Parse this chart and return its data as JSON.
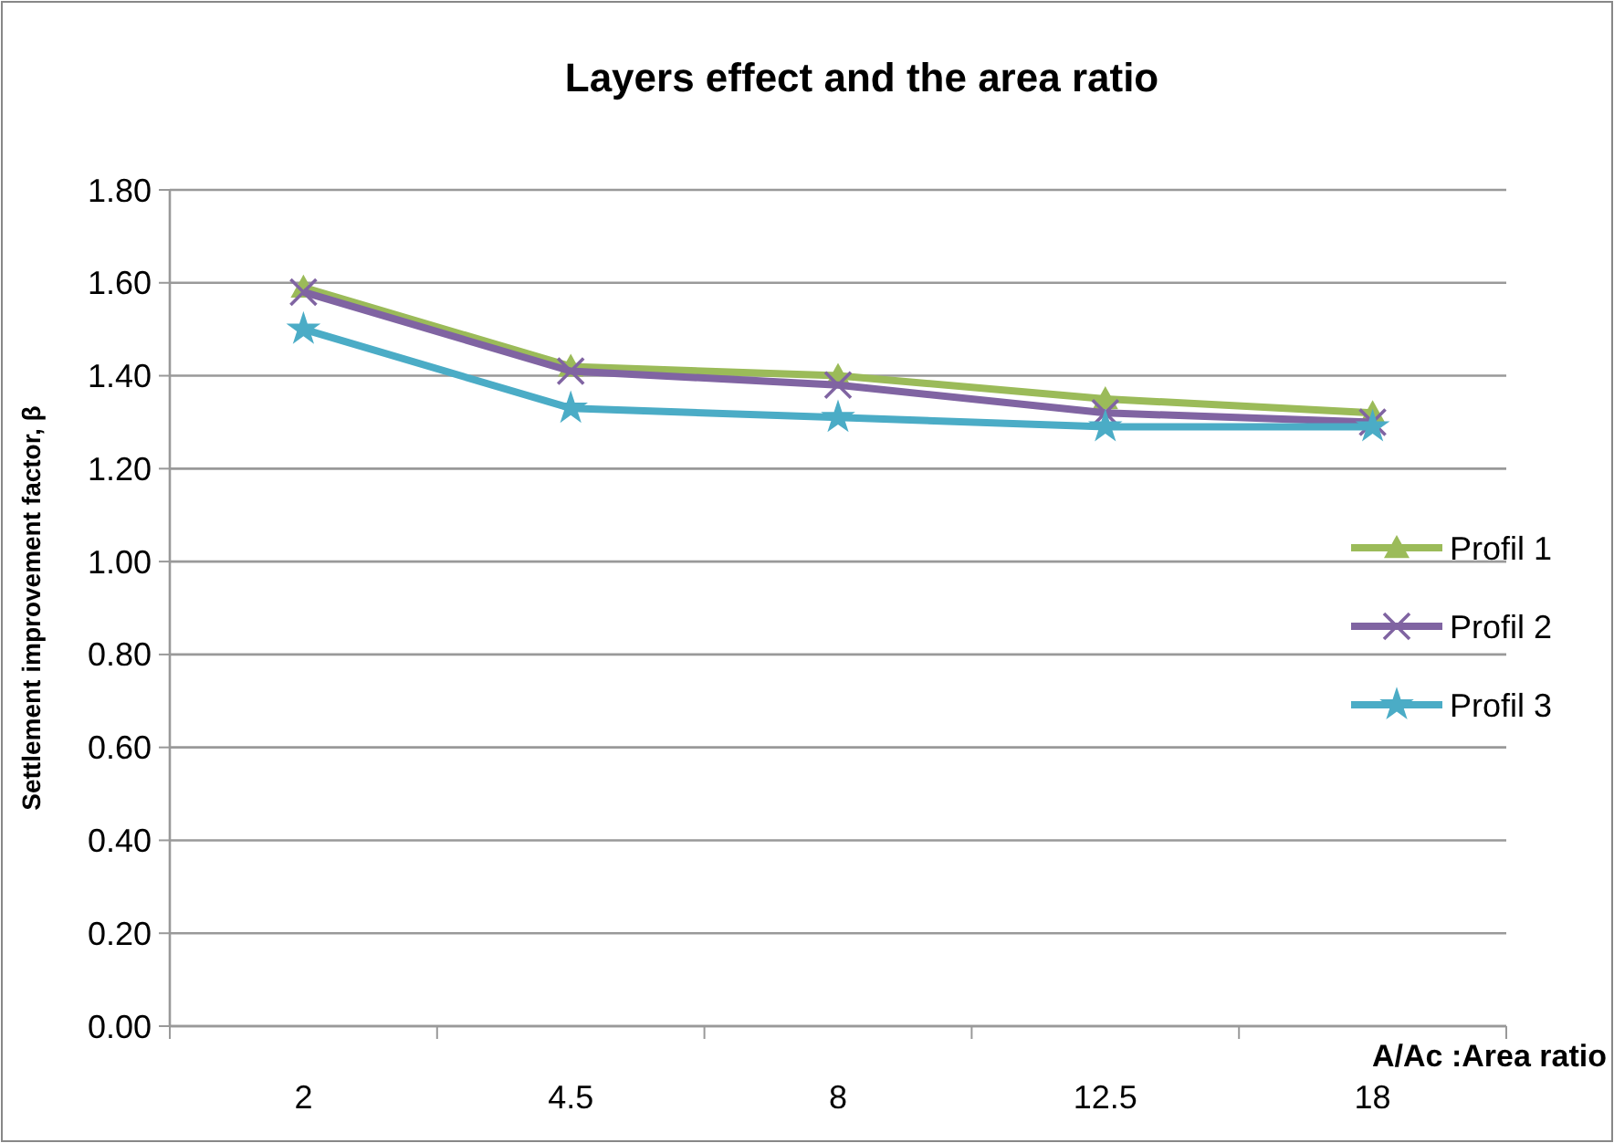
{
  "chart_data": {
    "type": "line",
    "title": "Layers effect and the area ratio",
    "xlabel": "A/Ac :Area ratio",
    "ylabel": "Settlement improvement factor, β",
    "categories": [
      "2",
      "4.5",
      "8",
      "12.5",
      "18"
    ],
    "series": [
      {
        "name": "Profil 1",
        "color": "#9bbb59",
        "marker": "triangle",
        "values": [
          1.59,
          1.42,
          1.4,
          1.35,
          1.32
        ]
      },
      {
        "name": "Profil 2",
        "color": "#8064a2",
        "marker": "cross",
        "values": [
          1.58,
          1.41,
          1.38,
          1.32,
          1.3
        ]
      },
      {
        "name": "Profil 3",
        "color": "#4bacc6",
        "marker": "star",
        "values": [
          1.5,
          1.33,
          1.31,
          1.29,
          1.29
        ]
      }
    ],
    "ylim": [
      0,
      1.8
    ],
    "yticks": [
      {
        "value": 0,
        "label": "0.00"
      },
      {
        "value": 0.2,
        "label": "0.20"
      },
      {
        "value": 0.4,
        "label": "0.40"
      },
      {
        "value": 0.6,
        "label": "0.60"
      },
      {
        "value": 0.8,
        "label": "0.80"
      },
      {
        "value": 1,
        "label": "1.00"
      },
      {
        "value": 1.2,
        "label": "1.20"
      },
      {
        "value": 1.4,
        "label": "1.40"
      },
      {
        "value": 1.6,
        "label": "1.60"
      },
      {
        "value": 1.8,
        "label": "1.80"
      }
    ],
    "grid": "y",
    "legend": "right",
    "line_style": "solid"
  }
}
